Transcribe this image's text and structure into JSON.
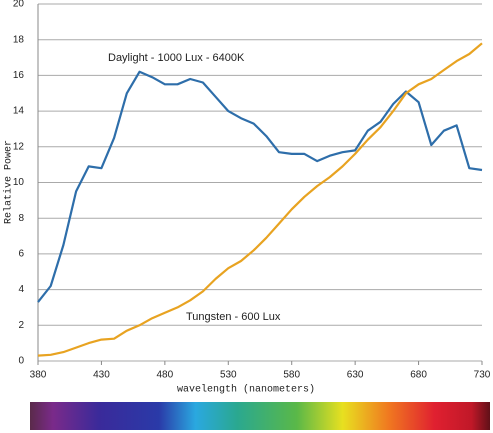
{
  "chart_data": {
    "type": "line",
    "x": [
      380,
      390,
      400,
      410,
      420,
      430,
      440,
      450,
      460,
      470,
      480,
      490,
      500,
      510,
      520,
      530,
      540,
      550,
      560,
      570,
      580,
      590,
      600,
      610,
      620,
      630,
      640,
      650,
      660,
      670,
      680,
      690,
      700,
      710,
      720,
      730
    ],
    "series": [
      {
        "name": "Daylight - 1000 Lux - 6400K",
        "color": "#2e6eaa",
        "values": [
          3.3,
          4.2,
          6.5,
          9.5,
          10.9,
          10.8,
          12.5,
          15.0,
          16.2,
          15.9,
          15.5,
          15.5,
          15.8,
          15.6,
          14.8,
          14.0,
          13.6,
          13.3,
          12.6,
          11.7,
          11.6,
          11.6,
          11.2,
          11.5,
          11.7,
          11.8,
          12.9,
          13.4,
          14.4,
          15.1,
          14.5,
          12.1,
          12.9,
          13.2,
          10.8,
          10.7
        ]
      },
      {
        "name": "Tungsten - 600 Lux",
        "color": "#e8a321",
        "values": [
          0.3,
          0.35,
          0.5,
          0.75,
          1.0,
          1.2,
          1.25,
          1.7,
          2.0,
          2.4,
          2.7,
          3.0,
          3.4,
          3.9,
          4.6,
          5.2,
          5.6,
          6.2,
          6.9,
          7.7,
          8.5,
          9.2,
          9.8,
          10.3,
          10.9,
          11.6,
          12.4,
          13.1,
          14.0,
          15.0,
          15.5,
          15.8,
          16.3,
          16.8,
          17.2,
          17.8
        ]
      }
    ],
    "xlabel": "wavelength (nanometers)",
    "ylabel": "Relative Power",
    "xlim": [
      380,
      730
    ],
    "xticks": [
      380,
      430,
      480,
      530,
      580,
      630,
      680,
      730
    ],
    "ylim": [
      0,
      20
    ],
    "yticks": [
      0,
      2,
      4,
      6,
      8,
      10,
      12,
      14,
      16,
      18,
      20
    ],
    "grid": true
  }
}
